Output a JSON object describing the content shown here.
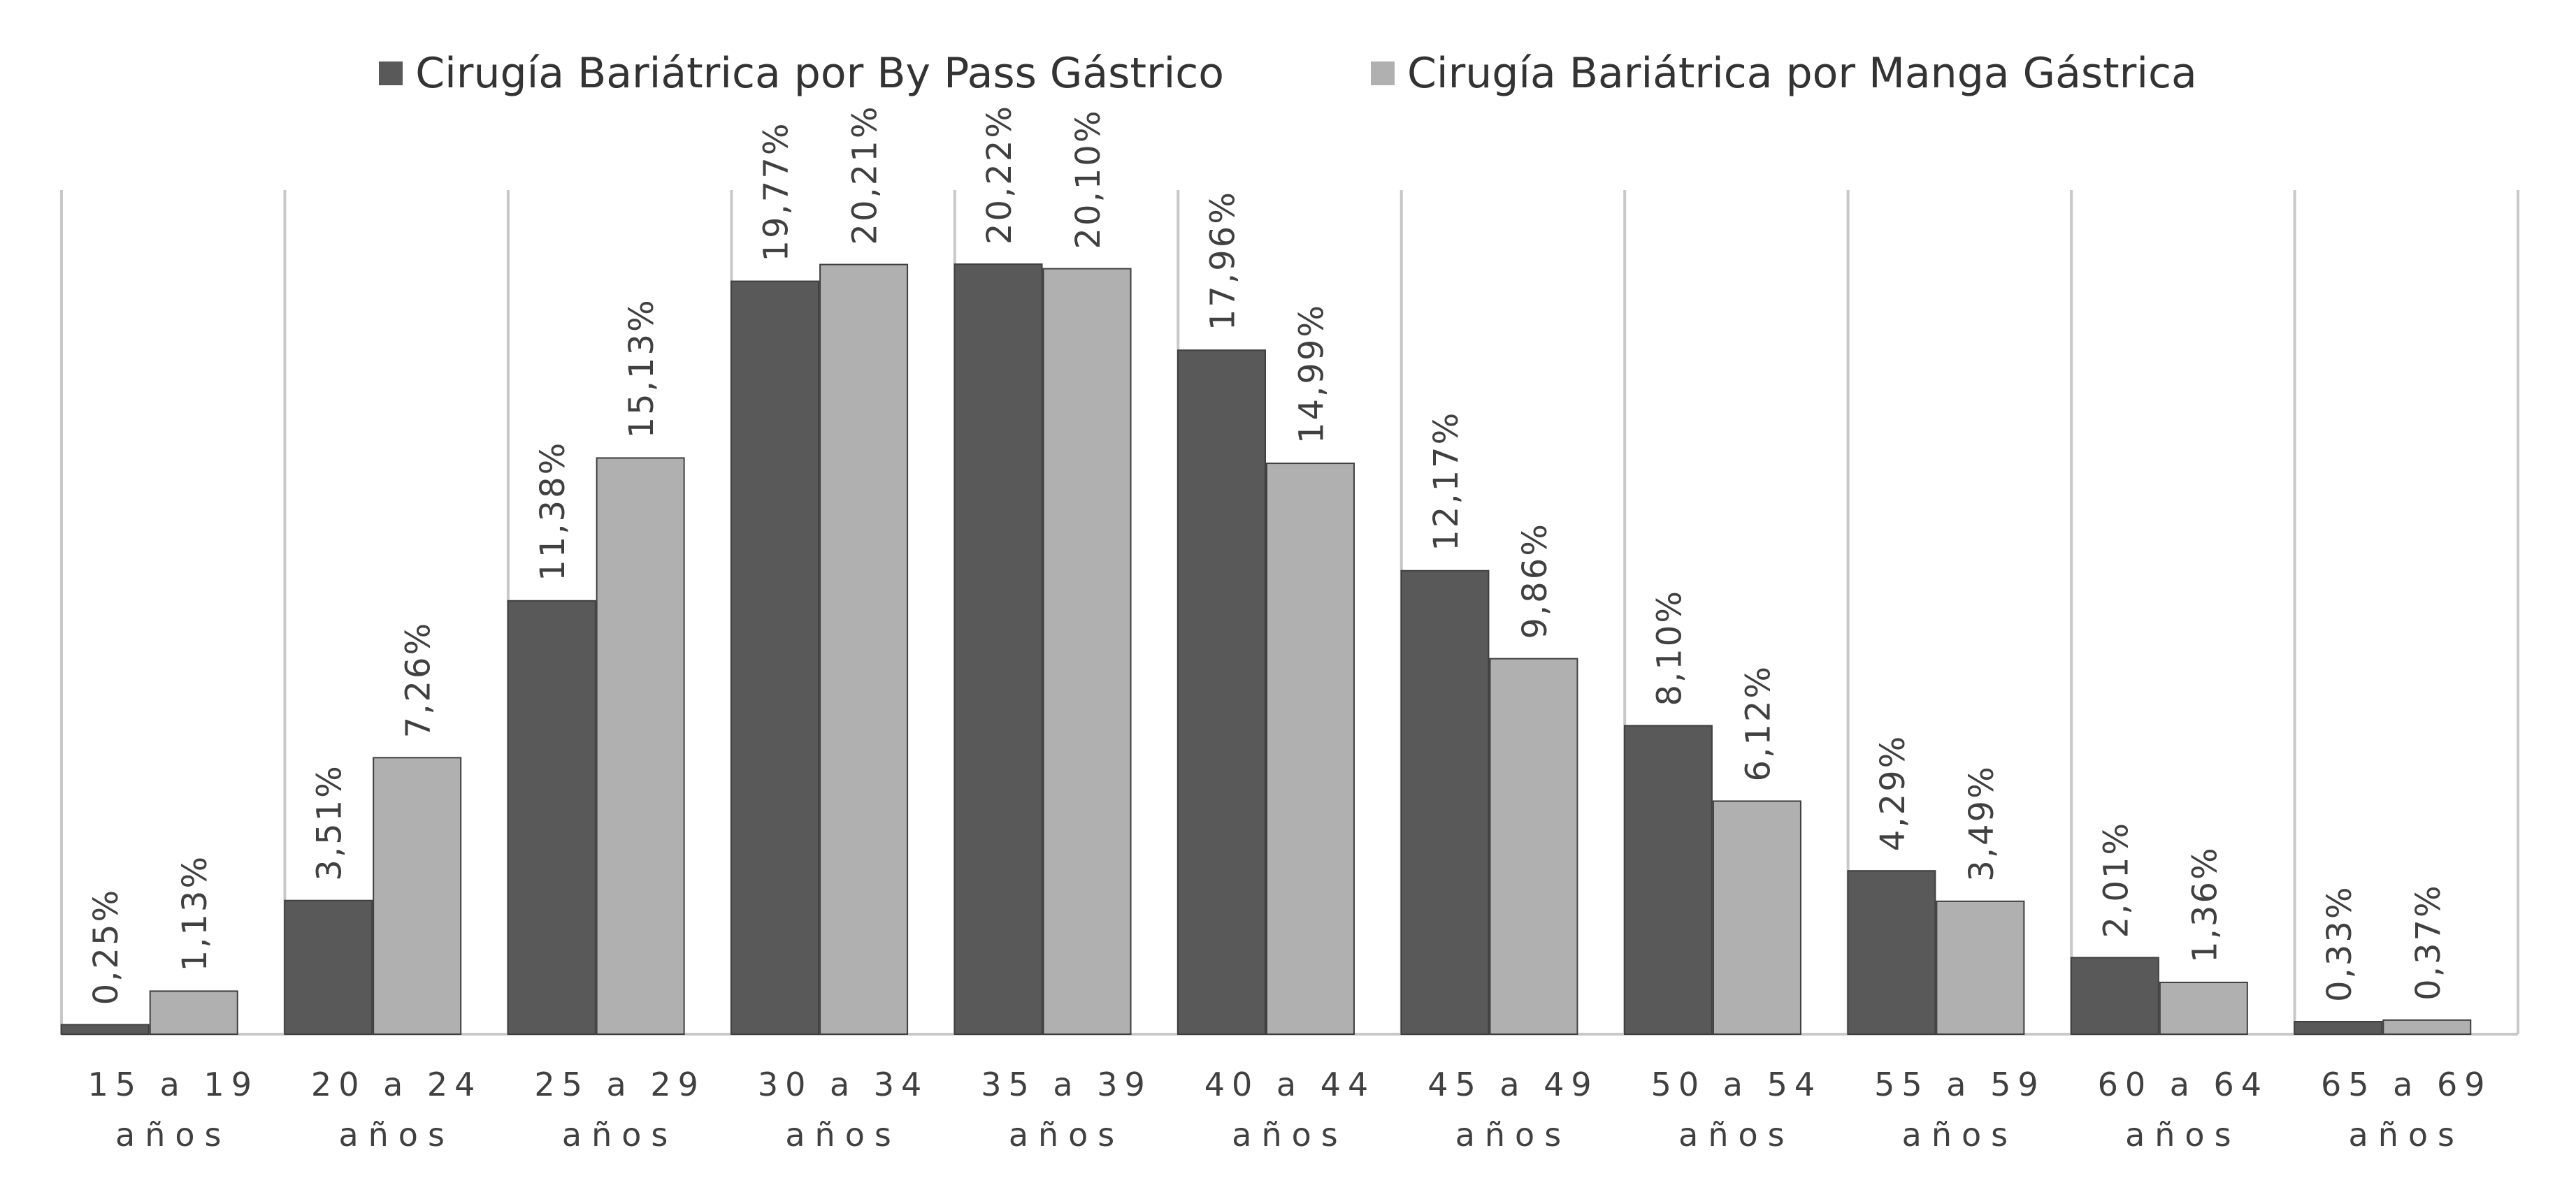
{
  "chart_data": {
    "type": "bar",
    "categories": [
      "15 a 19 años",
      "20 a 24 años",
      "25 a 29 años",
      "30 a 34 años",
      "35 a 39 años",
      "40 a 44 años",
      "45 a 49 años",
      "50 a 54 años",
      "55 a 59 años",
      "60 a 64 años",
      "65 a 69 años"
    ],
    "category_lines": [
      [
        "15 a 19",
        "años"
      ],
      [
        "20 a 24",
        "años"
      ],
      [
        "25 a 29",
        "años"
      ],
      [
        "30 a 34",
        "años"
      ],
      [
        "35 a 39",
        "años"
      ],
      [
        "40 a 44",
        "años"
      ],
      [
        "45 a 49",
        "años"
      ],
      [
        "50 a 54",
        "años"
      ],
      [
        "55 a 59",
        "años"
      ],
      [
        "60 a 64",
        "años"
      ],
      [
        "65 a 69",
        "años"
      ]
    ],
    "series": [
      {
        "name": "Cirugía Bariátrica por By Pass Gástrico",
        "color": "#595959",
        "values": [
          0.25,
          3.51,
          11.38,
          19.77,
          20.22,
          17.96,
          12.17,
          8.1,
          4.29,
          2.01,
          0.33
        ],
        "labels": [
          "0,25%",
          "3,51%",
          "11,38%",
          "19,77%",
          "20,22%",
          "17,96%",
          "12,17%",
          "8,10%",
          "4,29%",
          "2,01%",
          "0,33%"
        ]
      },
      {
        "name": "Cirugía Bariátrica por Manga Gástrica",
        "color": "#b0b0b0",
        "values": [
          1.13,
          7.26,
          15.13,
          20.21,
          20.1,
          14.99,
          9.86,
          6.12,
          3.49,
          1.36,
          0.37
        ],
        "labels": [
          "1,13%",
          "7,26%",
          "15,13%",
          "20,21%",
          "20,10%",
          "14,99%",
          "9,86%",
          "6,12%",
          "3,49%",
          "1,36%",
          "0,37%"
        ]
      }
    ],
    "xlabel": "",
    "ylabel": "",
    "ylim": [
      0,
      25
    ],
    "grid": "vertical",
    "legend": "top-center",
    "value_labels": "rotated"
  }
}
